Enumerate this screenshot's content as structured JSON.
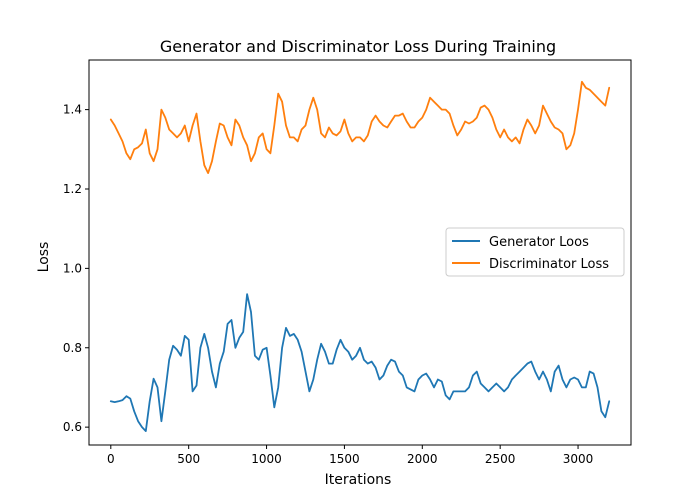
{
  "chart_data": {
    "type": "line",
    "title": "Generator and Discriminator Loss During Training",
    "xlabel": "Iterations",
    "ylabel": "Loss",
    "xlim": [
      -140,
      3340
    ],
    "ylim": [
      0.555,
      1.525
    ],
    "xticks": [
      0,
      500,
      1000,
      1500,
      2000,
      2500,
      3000
    ],
    "yticks": [
      0.6,
      0.8,
      1.0,
      1.2,
      1.4
    ],
    "ytick_labels": [
      "0.6",
      "0.8",
      "1.0",
      "1.2",
      "1.4"
    ],
    "grid": false,
    "legend_position": "center-right",
    "series": [
      {
        "name": "Generator Loos",
        "color": "#1f77b4",
        "x": [
          0,
          25,
          50,
          75,
          100,
          125,
          150,
          175,
          200,
          225,
          250,
          275,
          300,
          325,
          350,
          375,
          400,
          425,
          450,
          475,
          500,
          525,
          550,
          575,
          600,
          625,
          650,
          675,
          700,
          725,
          750,
          775,
          800,
          825,
          850,
          875,
          900,
          925,
          950,
          975,
          1000,
          1025,
          1050,
          1075,
          1100,
          1125,
          1150,
          1175,
          1200,
          1225,
          1250,
          1275,
          1300,
          1325,
          1350,
          1375,
          1400,
          1425,
          1450,
          1475,
          1500,
          1525,
          1550,
          1575,
          1600,
          1625,
          1650,
          1675,
          1700,
          1725,
          1750,
          1775,
          1800,
          1825,
          1850,
          1875,
          1900,
          1925,
          1950,
          1975,
          2000,
          2025,
          2050,
          2075,
          2100,
          2125,
          2150,
          2175,
          2200,
          2225,
          2250,
          2275,
          2300,
          2325,
          2350,
          2375,
          2400,
          2425,
          2450,
          2475,
          2500,
          2525,
          2550,
          2575,
          2600,
          2625,
          2650,
          2675,
          2700,
          2725,
          2750,
          2775,
          2800,
          2825,
          2850,
          2875,
          2900,
          2925,
          2950,
          2975,
          3000,
          3025,
          3050,
          3075,
          3100,
          3125,
          3150,
          3175,
          3200
        ],
        "values": [
          0.665,
          0.663,
          0.665,
          0.668,
          0.678,
          0.672,
          0.64,
          0.615,
          0.6,
          0.59,
          0.665,
          0.722,
          0.7,
          0.615,
          0.69,
          0.77,
          0.805,
          0.795,
          0.78,
          0.83,
          0.82,
          0.69,
          0.705,
          0.8,
          0.835,
          0.8,
          0.74,
          0.7,
          0.76,
          0.79,
          0.86,
          0.87,
          0.8,
          0.825,
          0.84,
          0.935,
          0.89,
          0.78,
          0.77,
          0.795,
          0.8,
          0.73,
          0.65,
          0.7,
          0.8,
          0.85,
          0.83,
          0.835,
          0.82,
          0.79,
          0.74,
          0.69,
          0.72,
          0.77,
          0.81,
          0.79,
          0.76,
          0.76,
          0.795,
          0.82,
          0.8,
          0.79,
          0.77,
          0.78,
          0.8,
          0.77,
          0.76,
          0.765,
          0.75,
          0.72,
          0.73,
          0.755,
          0.77,
          0.765,
          0.74,
          0.73,
          0.7,
          0.695,
          0.69,
          0.72,
          0.73,
          0.735,
          0.72,
          0.7,
          0.72,
          0.715,
          0.68,
          0.67,
          0.69,
          0.69,
          0.69,
          0.69,
          0.7,
          0.73,
          0.74,
          0.71,
          0.7,
          0.69,
          0.7,
          0.71,
          0.7,
          0.69,
          0.7,
          0.72,
          0.73,
          0.74,
          0.75,
          0.76,
          0.765,
          0.74,
          0.72,
          0.74,
          0.72,
          0.69,
          0.74,
          0.755,
          0.72,
          0.7,
          0.72,
          0.725,
          0.72,
          0.7,
          0.7,
          0.74,
          0.735,
          0.7,
          0.64,
          0.625,
          0.665
        ]
      },
      {
        "name": "Discriminator Loss",
        "color": "#ff7f0e",
        "x": [
          0,
          25,
          50,
          75,
          100,
          125,
          150,
          175,
          200,
          225,
          250,
          275,
          300,
          325,
          350,
          375,
          400,
          425,
          450,
          475,
          500,
          525,
          550,
          575,
          600,
          625,
          650,
          675,
          700,
          725,
          750,
          775,
          800,
          825,
          850,
          875,
          900,
          925,
          950,
          975,
          1000,
          1025,
          1050,
          1075,
          1100,
          1125,
          1150,
          1175,
          1200,
          1225,
          1250,
          1275,
          1300,
          1325,
          1350,
          1375,
          1400,
          1425,
          1450,
          1475,
          1500,
          1525,
          1550,
          1575,
          1600,
          1625,
          1650,
          1675,
          1700,
          1725,
          1750,
          1775,
          1800,
          1825,
          1850,
          1875,
          1900,
          1925,
          1950,
          1975,
          2000,
          2025,
          2050,
          2075,
          2100,
          2125,
          2150,
          2175,
          2200,
          2225,
          2250,
          2275,
          2300,
          2325,
          2350,
          2375,
          2400,
          2425,
          2450,
          2475,
          2500,
          2525,
          2550,
          2575,
          2600,
          2625,
          2650,
          2675,
          2700,
          2725,
          2750,
          2775,
          2800,
          2825,
          2850,
          2875,
          2900,
          2925,
          2950,
          2975,
          3000,
          3025,
          3050,
          3075,
          3100,
          3125,
          3150,
          3175,
          3200
        ],
        "values": [
          1.375,
          1.36,
          1.34,
          1.32,
          1.29,
          1.275,
          1.3,
          1.305,
          1.315,
          1.35,
          1.29,
          1.27,
          1.3,
          1.4,
          1.38,
          1.35,
          1.34,
          1.33,
          1.34,
          1.36,
          1.32,
          1.36,
          1.39,
          1.32,
          1.26,
          1.24,
          1.27,
          1.32,
          1.365,
          1.36,
          1.33,
          1.31,
          1.375,
          1.36,
          1.33,
          1.31,
          1.27,
          1.29,
          1.33,
          1.34,
          1.3,
          1.29,
          1.36,
          1.44,
          1.42,
          1.36,
          1.33,
          1.33,
          1.32,
          1.35,
          1.36,
          1.4,
          1.43,
          1.4,
          1.34,
          1.33,
          1.355,
          1.34,
          1.335,
          1.345,
          1.375,
          1.34,
          1.32,
          1.33,
          1.33,
          1.32,
          1.335,
          1.37,
          1.385,
          1.37,
          1.36,
          1.355,
          1.37,
          1.385,
          1.385,
          1.39,
          1.37,
          1.355,
          1.355,
          1.37,
          1.38,
          1.4,
          1.43,
          1.42,
          1.41,
          1.4,
          1.4,
          1.39,
          1.36,
          1.335,
          1.35,
          1.37,
          1.365,
          1.37,
          1.38,
          1.405,
          1.41,
          1.4,
          1.38,
          1.35,
          1.33,
          1.35,
          1.33,
          1.32,
          1.33,
          1.315,
          1.35,
          1.375,
          1.36,
          1.34,
          1.36,
          1.41,
          1.39,
          1.37,
          1.355,
          1.35,
          1.34,
          1.3,
          1.31,
          1.34,
          1.4,
          1.47,
          1.455,
          1.45,
          1.44,
          1.43,
          1.42,
          1.41,
          1.455
        ]
      }
    ]
  }
}
